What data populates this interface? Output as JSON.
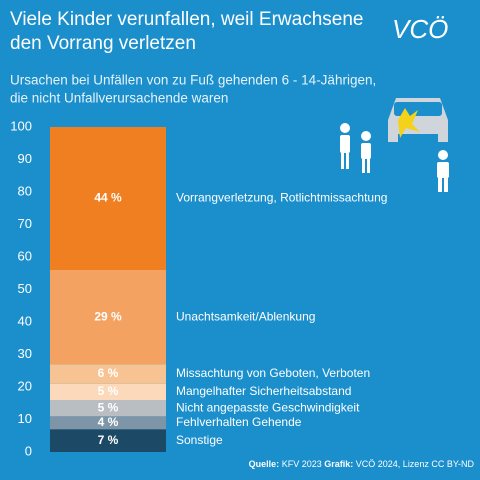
{
  "chart_data": {
    "type": "stacked-bar",
    "title": [
      "Viele Kinder verunfallen, weil Erwachsene",
      "den Vorrang verletzen"
    ],
    "subtitle": [
      "Ursachen bei Unfällen von zu Fuß gehenden 6 - 14-Jährigen,",
      "die nicht Unfallverursachende waren"
    ],
    "logo": "VCÖ",
    "ylim": [
      0,
      100
    ],
    "yticks": [
      0,
      10,
      20,
      30,
      40,
      50,
      60,
      70,
      80,
      90,
      100
    ],
    "series": [
      {
        "name": "Sonstige",
        "color": "#1c4a66",
        "values": [
          7
        ],
        "value_labels": [
          "7 %"
        ]
      },
      {
        "name": "Fehlverhalten Gehende",
        "color": "#7d95a6",
        "values": [
          4
        ],
        "value_labels": [
          "4 %"
        ]
      },
      {
        "name": "Nicht angepasste Geschwindigkeit",
        "color": "#b9bec3",
        "values": [
          5
        ],
        "value_labels": [
          "5 %"
        ]
      },
      {
        "name": "Mangelhafter Sicherheitsabstand",
        "color": "#fcd9bb",
        "values": [
          5
        ],
        "value_labels": [
          "5 %"
        ]
      },
      {
        "name": "Missachtung von Geboten, Verboten",
        "color": "#f8c393",
        "values": [
          6
        ],
        "value_labels": [
          "6 %"
        ]
      },
      {
        "name": "Unachtsamkeit/Ablenkung",
        "color": "#f4a261",
        "values": [
          29
        ],
        "value_labels": [
          "29 %"
        ]
      },
      {
        "name": "Vorrangverletzung, Rotlichtmissachtung",
        "color": "#f07f22",
        "values": [
          44
        ],
        "value_labels": [
          "44 %"
        ]
      }
    ],
    "source_label": "Quelle:",
    "source": "KFV 2023",
    "credit_label": "Grafik:",
    "credit": "VCÖ 2024, Lizenz CC BY-ND"
  }
}
